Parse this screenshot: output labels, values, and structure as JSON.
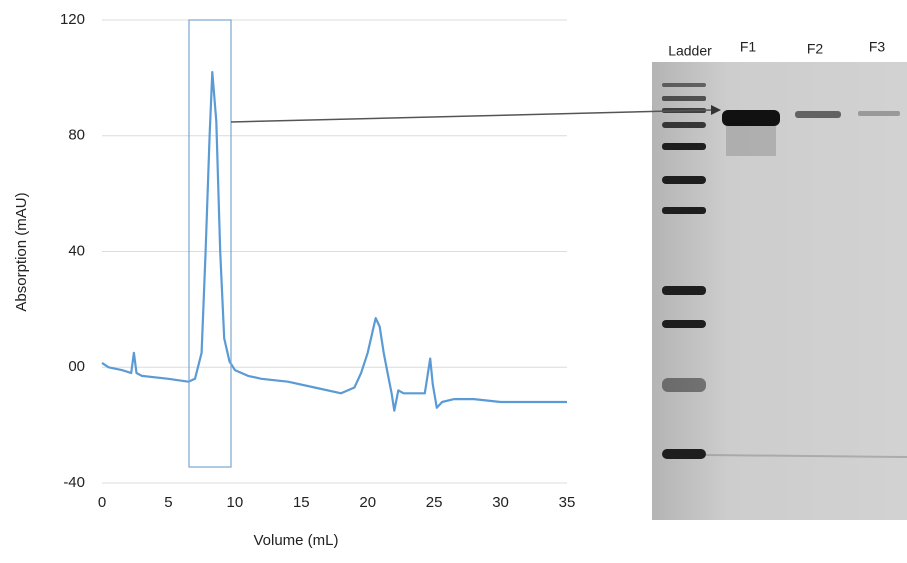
{
  "chart_data": {
    "type": "line",
    "xlabel": "Volume  (mL)",
    "ylabel": "Absorption (mAU)",
    "x": [
      0,
      0.5,
      1.5,
      2.2,
      2.4,
      2.6,
      3,
      5,
      6.5,
      7,
      7.5,
      7.8,
      8.1,
      8.3,
      8.6,
      8.9,
      9.2,
      9.6,
      10,
      11,
      12,
      14,
      16,
      18,
      19,
      19.5,
      20,
      20.4,
      20.6,
      20.9,
      21.2,
      21.5,
      21.8,
      22,
      22.3,
      22.7,
      23.5,
      24.3,
      24.7,
      24.9,
      25.2,
      25.6,
      26.5,
      28,
      30,
      33,
      35
    ],
    "values": [
      1.5,
      0,
      -1,
      -2,
      5,
      -2,
      -3,
      -4,
      -5,
      -4,
      5,
      40,
      80,
      102,
      85,
      40,
      10,
      2,
      -1,
      -3,
      -4,
      -5,
      -7,
      -9,
      -7,
      -2,
      5,
      13,
      17,
      14,
      5,
      -2,
      -9,
      -15,
      -8,
      -9,
      -9,
      -9,
      3,
      -6,
      -14,
      -12,
      -11,
      -11,
      -12,
      -12,
      -12
    ],
    "color": "#5b9bd5",
    "xlim": [
      0,
      35
    ],
    "xticks": [
      0,
      5,
      10,
      15,
      20,
      25,
      30,
      35
    ],
    "ylim": [
      -40,
      120
    ],
    "yticks": [
      -40,
      {
        "value": 0,
        "label": "00"
      },
      40,
      80,
      120
    ],
    "grid": true
  },
  "gel": {
    "lanes": [
      "Ladder",
      "F1",
      "F2",
      "F3"
    ]
  }
}
